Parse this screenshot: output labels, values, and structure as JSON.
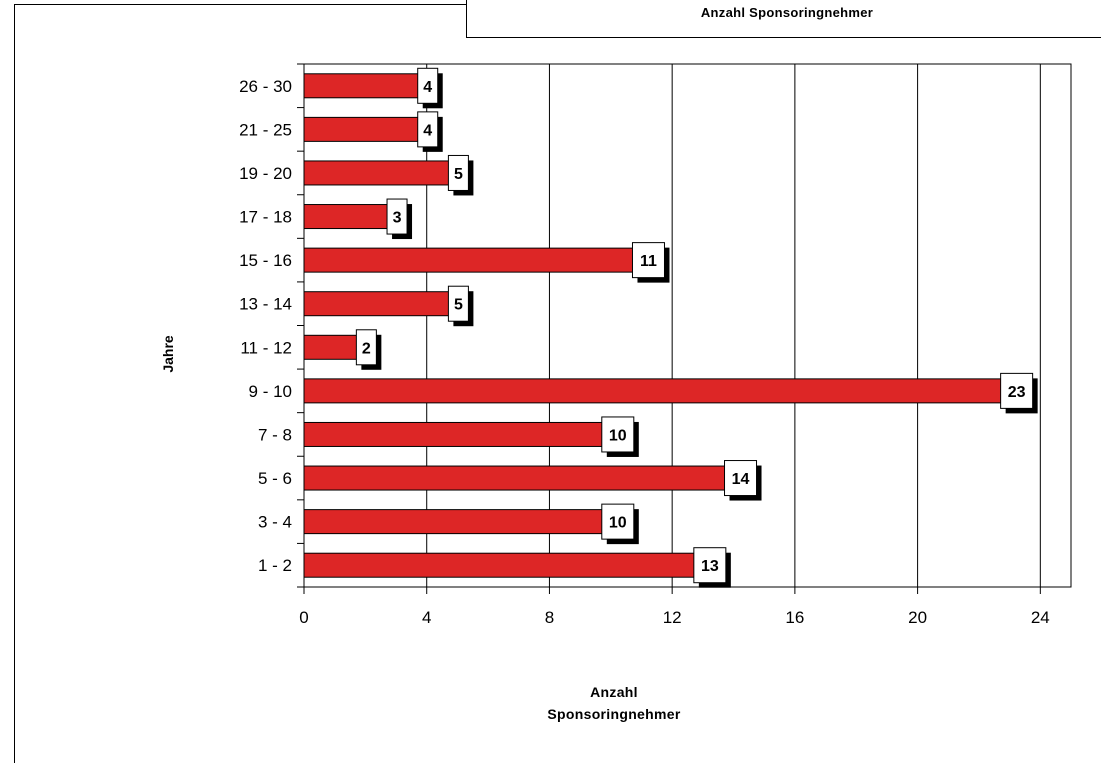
{
  "legend": {
    "title": "Anzahl Sponsoringnehmer"
  },
  "colors": {
    "bar": "#dd2626",
    "frame": "#000000",
    "background": "#ffffff"
  },
  "chart_data": {
    "type": "bar",
    "orientation": "horizontal",
    "categories": [
      "1 - 2",
      "3 - 4",
      "5 - 6",
      "7 - 8",
      "9 - 10",
      "11 - 12",
      "13 - 14",
      "15 - 16",
      "17 - 18",
      "19 - 20",
      "21 - 25",
      "26 - 30"
    ],
    "values": [
      13,
      10,
      14,
      10,
      23,
      2,
      5,
      11,
      3,
      5,
      4,
      4
    ],
    "ylabel": "Jahre",
    "xlabel_lines": [
      "Anzahl",
      "Sponsoringnehmer"
    ],
    "xlim": [
      0,
      25
    ],
    "xticks": [
      0,
      4,
      8,
      12,
      16,
      20,
      24
    ],
    "grid": "vertical",
    "data_labels": true
  }
}
